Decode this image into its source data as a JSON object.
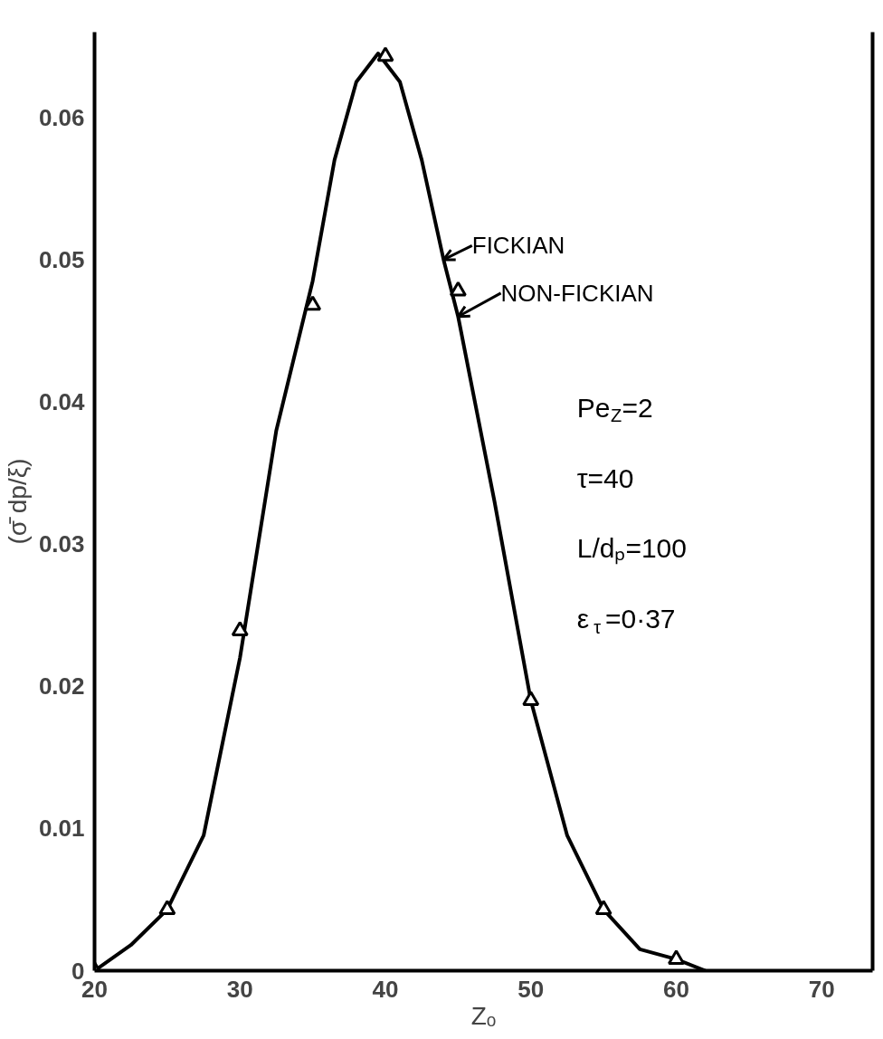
{
  "chart_data": {
    "type": "line",
    "xlabel": "Zₒ",
    "ylabel": "(σ̄ dp/ξ)",
    "xlim": [
      20,
      73.5
    ],
    "ylim": [
      0,
      0.066
    ],
    "xticks": [
      20,
      30,
      40,
      50,
      60,
      70
    ],
    "yticks": [
      0,
      0.01,
      0.02,
      0.03,
      0.04,
      0.05,
      0.06
    ],
    "grid": false,
    "series": [
      {
        "color": "#000000",
        "line_style": "solid",
        "x": [
          20,
          22.5,
          25,
          27.5,
          30,
          32.5,
          35,
          36.5,
          38,
          39.5,
          41,
          42.5,
          44,
          45,
          47.5,
          50,
          52.5,
          55,
          57.5,
          60,
          62
        ],
        "values": [
          0,
          0.0018,
          0.0043,
          0.0095,
          0.022,
          0.038,
          0.0485,
          0.057,
          0.0625,
          0.0645,
          0.0625,
          0.057,
          0.05,
          0.046,
          0.033,
          0.019,
          0.0095,
          0.0043,
          0.0015,
          0.0008,
          0
        ]
      },
      {
        "type": "scatter",
        "marker": "triangle",
        "color": "#000000",
        "x": [
          20,
          25,
          30,
          35,
          40,
          45,
          50,
          55,
          60
        ],
        "values": [
          0,
          0.0043,
          0.0239,
          0.0468,
          0.0643,
          0.0478,
          0.019,
          0.0043,
          0.0008
        ]
      }
    ],
    "annotations": [
      {
        "text": "FICKIAN",
        "x": 44,
        "y": 0.05
      },
      {
        "text": "NON-FICKIAN",
        "x": 45,
        "y": 0.046
      },
      "Pe$_{Z}$=2",
      "τ=40",
      "L/dₚ=100",
      "ε$_{τ}$=0·37"
    ]
  }
}
